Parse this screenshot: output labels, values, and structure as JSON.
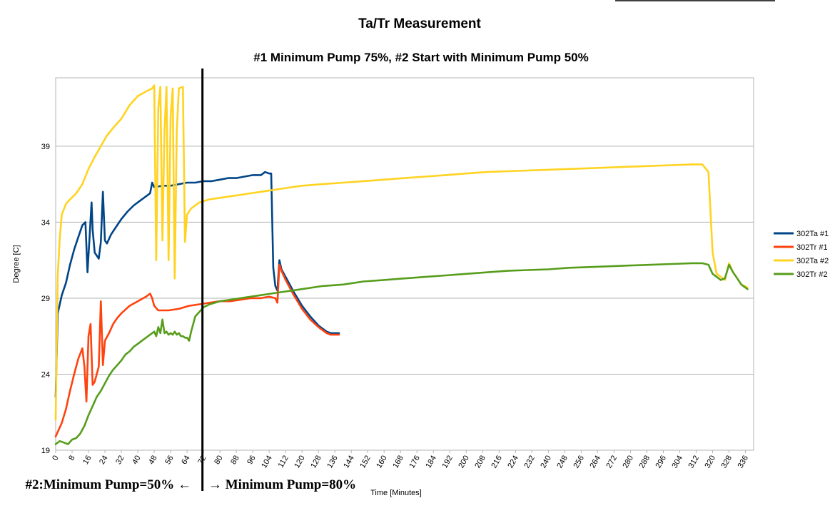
{
  "chart_data": {
    "type": "line",
    "title": "Ta/Tr Measurement",
    "subtitle": "#1 Minimum Pump 75%, #2 Start with Minimum Pump 50%",
    "xlabel": "Time [Minutes]",
    "ylabel": "Degree [C]",
    "xlim": [
      0,
      340
    ],
    "ylim": [
      19,
      43.5
    ],
    "xticks": [
      0,
      8,
      16,
      24,
      32,
      40,
      48,
      56,
      64,
      72,
      80,
      88,
      96,
      104,
      112,
      120,
      128,
      136,
      144,
      152,
      160,
      168,
      176,
      184,
      192,
      200,
      208,
      216,
      224,
      232,
      240,
      248,
      256,
      264,
      272,
      280,
      288,
      296,
      304,
      312,
      320,
      328,
      336
    ],
    "yticks": [
      19,
      24,
      29,
      34,
      39
    ],
    "grid": true,
    "legend_position": "right",
    "marker_x": 71.5,
    "annotations": {
      "left": "#2:Minimum Pump=50% ←",
      "right": "→ Minimum Pump=80%"
    },
    "series": [
      {
        "name": "302Ta #1",
        "color": "#004586",
        "points": [
          [
            0,
            22.5
          ],
          [
            1,
            28
          ],
          [
            3,
            29.2
          ],
          [
            5,
            30
          ],
          [
            7,
            31.2
          ],
          [
            9,
            32.2
          ],
          [
            11,
            33
          ],
          [
            13,
            33.8
          ],
          [
            14.5,
            34
          ],
          [
            15.5,
            30.7
          ],
          [
            16.5,
            33
          ],
          [
            17.5,
            35.3
          ],
          [
            18,
            33.5
          ],
          [
            19,
            32
          ],
          [
            21,
            31.6
          ],
          [
            22,
            32.7
          ],
          [
            23,
            36
          ],
          [
            24,
            32.8
          ],
          [
            25,
            32.6
          ],
          [
            27,
            33.2
          ],
          [
            29,
            33.6
          ],
          [
            32,
            34.2
          ],
          [
            35,
            34.7
          ],
          [
            38,
            35.1
          ],
          [
            41,
            35.4
          ],
          [
            44,
            35.7
          ],
          [
            46,
            35.9
          ],
          [
            47,
            36.6
          ],
          [
            48,
            36.3
          ],
          [
            52,
            36.4
          ],
          [
            56,
            36.4
          ],
          [
            60,
            36.5
          ],
          [
            64,
            36.6
          ],
          [
            68,
            36.6
          ],
          [
            72,
            36.7
          ],
          [
            76,
            36.7
          ],
          [
            80,
            36.8
          ],
          [
            84,
            36.9
          ],
          [
            88,
            36.9
          ],
          [
            92,
            37
          ],
          [
            96,
            37.1
          ],
          [
            100,
            37.1
          ],
          [
            102,
            37.3
          ],
          [
            104,
            37.2
          ],
          [
            105,
            37.2
          ],
          [
            106,
            31
          ],
          [
            107,
            29.8
          ],
          [
            108,
            29.5
          ],
          [
            109,
            31.5
          ],
          [
            110,
            30.9
          ],
          [
            112,
            30.4
          ],
          [
            116,
            29.4
          ],
          [
            120,
            28.5
          ],
          [
            124,
            27.8
          ],
          [
            128,
            27.2
          ],
          [
            132,
            26.8
          ],
          [
            134,
            26.7
          ],
          [
            138,
            26.7
          ]
        ]
      },
      {
        "name": "302Tr #1",
        "color": "#ff420e",
        "points": [
          [
            0,
            19.9
          ],
          [
            1,
            20.2
          ],
          [
            3,
            20.8
          ],
          [
            5,
            21.7
          ],
          [
            7,
            22.9
          ],
          [
            9,
            24
          ],
          [
            11,
            25
          ],
          [
            13,
            25.7
          ],
          [
            14,
            24.5
          ],
          [
            15,
            22.2
          ],
          [
            16,
            26.5
          ],
          [
            17,
            27.3
          ],
          [
            18,
            23.3
          ],
          [
            19,
            23.5
          ],
          [
            21,
            24.5
          ],
          [
            22,
            28.8
          ],
          [
            23,
            24.6
          ],
          [
            24,
            26.2
          ],
          [
            26,
            26.7
          ],
          [
            28,
            27.3
          ],
          [
            30,
            27.7
          ],
          [
            32,
            28
          ],
          [
            36,
            28.5
          ],
          [
            40,
            28.8
          ],
          [
            44,
            29.1
          ],
          [
            46,
            29.3
          ],
          [
            47,
            29
          ],
          [
            48,
            28.5
          ],
          [
            50,
            28.2
          ],
          [
            55,
            28.2
          ],
          [
            60,
            28.3
          ],
          [
            65,
            28.5
          ],
          [
            70,
            28.6
          ],
          [
            75,
            28.7
          ],
          [
            80,
            28.8
          ],
          [
            85,
            28.8
          ],
          [
            90,
            28.9
          ],
          [
            95,
            29
          ],
          [
            100,
            29
          ],
          [
            104,
            29.1
          ],
          [
            107,
            29
          ],
          [
            108,
            28.7
          ],
          [
            109,
            31.2
          ],
          [
            110,
            30.8
          ],
          [
            112,
            30.2
          ],
          [
            116,
            29.2
          ],
          [
            120,
            28.3
          ],
          [
            124,
            27.6
          ],
          [
            128,
            27.1
          ],
          [
            132,
            26.7
          ],
          [
            134,
            26.6
          ],
          [
            138,
            26.6
          ]
        ]
      },
      {
        "name": "302Ta #2",
        "color": "#ffd320",
        "points": [
          [
            0,
            21
          ],
          [
            1,
            30.5
          ],
          [
            2,
            33
          ],
          [
            3,
            34.5
          ],
          [
            5,
            35.2
          ],
          [
            7,
            35.5
          ],
          [
            10,
            35.9
          ],
          [
            13,
            36.5
          ],
          [
            16,
            37.5
          ],
          [
            19,
            38.3
          ],
          [
            22,
            39
          ],
          [
            25,
            39.7
          ],
          [
            28,
            40.2
          ],
          [
            32,
            40.8
          ],
          [
            36,
            41.7
          ],
          [
            40,
            42.3
          ],
          [
            44,
            42.6
          ],
          [
            47,
            42.8
          ],
          [
            48,
            43
          ],
          [
            49,
            31.5
          ],
          [
            50,
            41.5
          ],
          [
            51,
            42.9
          ],
          [
            52,
            32.8
          ],
          [
            53,
            40
          ],
          [
            54,
            42.9
          ],
          [
            55,
            31.5
          ],
          [
            56,
            41
          ],
          [
            57,
            42.8
          ],
          [
            58,
            30.3
          ],
          [
            59,
            40
          ],
          [
            60,
            42.8
          ],
          [
            62,
            42.9
          ],
          [
            63,
            32.7
          ],
          [
            64,
            34.5
          ],
          [
            66,
            34.9
          ],
          [
            70,
            35.3
          ],
          [
            75,
            35.5
          ],
          [
            80,
            35.6
          ],
          [
            85,
            35.7
          ],
          [
            90,
            35.8
          ],
          [
            95,
            35.9
          ],
          [
            100,
            36
          ],
          [
            105,
            36.1
          ],
          [
            110,
            36.2
          ],
          [
            115,
            36.3
          ],
          [
            120,
            36.4
          ],
          [
            130,
            36.5
          ],
          [
            140,
            36.6
          ],
          [
            150,
            36.7
          ],
          [
            160,
            36.8
          ],
          [
            170,
            36.9
          ],
          [
            180,
            37
          ],
          [
            190,
            37.1
          ],
          [
            200,
            37.2
          ],
          [
            210,
            37.3
          ],
          [
            220,
            37.35
          ],
          [
            230,
            37.4
          ],
          [
            240,
            37.45
          ],
          [
            250,
            37.5
          ],
          [
            260,
            37.55
          ],
          [
            270,
            37.6
          ],
          [
            280,
            37.65
          ],
          [
            290,
            37.7
          ],
          [
            300,
            37.75
          ],
          [
            310,
            37.8
          ],
          [
            315,
            37.8
          ],
          [
            318,
            37.3
          ],
          [
            320,
            32
          ],
          [
            322,
            30.6
          ],
          [
            324,
            30.4
          ],
          [
            326,
            30.2
          ],
          [
            328,
            31.3
          ],
          [
            330,
            30.7
          ],
          [
            332,
            30.3
          ],
          [
            334,
            29.9
          ],
          [
            337,
            29.7
          ]
        ]
      },
      {
        "name": "302Tr #2",
        "color": "#579d1c",
        "points": [
          [
            0,
            19.4
          ],
          [
            2,
            19.6
          ],
          [
            4,
            19.5
          ],
          [
            6,
            19.4
          ],
          [
            8,
            19.7
          ],
          [
            10,
            19.8
          ],
          [
            12,
            20.1
          ],
          [
            14,
            20.6
          ],
          [
            16,
            21.3
          ],
          [
            18,
            21.9
          ],
          [
            20,
            22.5
          ],
          [
            22,
            22.9
          ],
          [
            24,
            23.4
          ],
          [
            26,
            23.9
          ],
          [
            28,
            24.3
          ],
          [
            30,
            24.6
          ],
          [
            32,
            24.9
          ],
          [
            34,
            25.3
          ],
          [
            36,
            25.5
          ],
          [
            38,
            25.8
          ],
          [
            40,
            26
          ],
          [
            42,
            26.2
          ],
          [
            44,
            26.4
          ],
          [
            46,
            26.6
          ],
          [
            48,
            26.8
          ],
          [
            49,
            26.5
          ],
          [
            50,
            27.1
          ],
          [
            51,
            26.7
          ],
          [
            52,
            27.6
          ],
          [
            53,
            26.7
          ],
          [
            54,
            26.8
          ],
          [
            55,
            26.6
          ],
          [
            56,
            26.7
          ],
          [
            57,
            26.6
          ],
          [
            58,
            26.8
          ],
          [
            59,
            26.6
          ],
          [
            60,
            26.7
          ],
          [
            61,
            26.5
          ],
          [
            62,
            26.5
          ],
          [
            63,
            26.4
          ],
          [
            64,
            26.4
          ],
          [
            65,
            26.2
          ],
          [
            66,
            26.8
          ],
          [
            67,
            27.3
          ],
          [
            68,
            27.8
          ],
          [
            70,
            28.1
          ],
          [
            72,
            28.4
          ],
          [
            75,
            28.6
          ],
          [
            80,
            28.8
          ],
          [
            85,
            28.9
          ],
          [
            90,
            29
          ],
          [
            95,
            29.1
          ],
          [
            100,
            29.2
          ],
          [
            105,
            29.3
          ],
          [
            110,
            29.4
          ],
          [
            115,
            29.5
          ],
          [
            120,
            29.6
          ],
          [
            130,
            29.8
          ],
          [
            140,
            29.9
          ],
          [
            150,
            30.1
          ],
          [
            160,
            30.2
          ],
          [
            170,
            30.3
          ],
          [
            180,
            30.4
          ],
          [
            190,
            30.5
          ],
          [
            200,
            30.6
          ],
          [
            210,
            30.7
          ],
          [
            220,
            30.8
          ],
          [
            230,
            30.85
          ],
          [
            240,
            30.9
          ],
          [
            250,
            31
          ],
          [
            260,
            31.05
          ],
          [
            270,
            31.1
          ],
          [
            280,
            31.15
          ],
          [
            290,
            31.2
          ],
          [
            300,
            31.25
          ],
          [
            310,
            31.3
          ],
          [
            315,
            31.3
          ],
          [
            318,
            31.2
          ],
          [
            320,
            30.6
          ],
          [
            322,
            30.4
          ],
          [
            324,
            30.2
          ],
          [
            326,
            30.3
          ],
          [
            328,
            31.2
          ],
          [
            330,
            30.7
          ],
          [
            332,
            30.3
          ],
          [
            334,
            29.9
          ],
          [
            337,
            29.6
          ]
        ]
      }
    ]
  }
}
